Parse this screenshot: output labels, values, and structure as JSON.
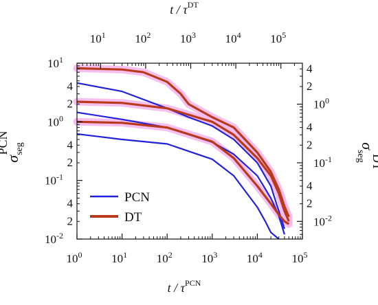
{
  "chart_data": {
    "type": "line",
    "x_bottom": {
      "label_main": "t / τ",
      "label_sup": "PCN",
      "scale": "log",
      "range": [
        1,
        100000
      ],
      "ticks": [
        {
          "b": "10",
          "e": "0",
          "v": 1
        },
        {
          "b": "10",
          "e": "1",
          "v": 10
        },
        {
          "b": "10",
          "e": "2",
          "v": 100
        },
        {
          "b": "10",
          "e": "3",
          "v": 1000
        },
        {
          "b": "10",
          "e": "4",
          "v": 10000
        },
        {
          "b": "10",
          "e": "5",
          "v": 100000
        }
      ]
    },
    "x_top": {
      "label_main": "t / τ",
      "label_sup": "DT",
      "scale": "log",
      "range": [
        3,
        300000
      ],
      "ticks": [
        {
          "b": "10",
          "e": "1",
          "v": 10
        },
        {
          "b": "10",
          "e": "2",
          "v": 100
        },
        {
          "b": "10",
          "e": "3",
          "v": 1000
        },
        {
          "b": "10",
          "e": "4",
          "v": 10000
        },
        {
          "b": "10",
          "e": "5",
          "v": 100000
        }
      ]
    },
    "y_left": {
      "label_main": "σ",
      "label_sub": "seg",
      "label_sup": "PCN",
      "scale": "log",
      "range": [
        0.01,
        10
      ],
      "ticks": [
        {
          "b": "10",
          "e": "-2",
          "v": 0.01
        },
        {
          "b": "10",
          "e": "-1",
          "v": 0.1
        },
        {
          "b": "10",
          "e": "0",
          "v": 1
        },
        {
          "b": "10",
          "e": "1",
          "v": 10
        }
      ],
      "minor_labels": [
        {
          "t": "2",
          "v": 0.02
        },
        {
          "t": "4",
          "v": 0.04
        },
        {
          "t": "2",
          "v": 0.2
        },
        {
          "t": "4",
          "v": 0.4
        },
        {
          "t": "2",
          "v": 2
        },
        {
          "t": "4",
          "v": 4
        }
      ]
    },
    "y_right": {
      "label_main": "σ",
      "label_sub": "seg",
      "label_sup": "DT",
      "scale": "log",
      "range": [
        0.005,
        5
      ],
      "ticks": [
        {
          "b": "10",
          "e": "-2",
          "v": 0.01
        },
        {
          "b": "10",
          "e": "-1",
          "v": 0.1
        },
        {
          "b": "10",
          "e": "0",
          "v": 1
        }
      ],
      "minor_labels": [
        {
          "t": "2",
          "v": 0.02
        },
        {
          "t": "4",
          "v": 0.04
        },
        {
          "t": "2",
          "v": 0.2
        },
        {
          "t": "4",
          "v": 0.4
        },
        {
          "t": "2",
          "v": 2
        },
        {
          "t": "4",
          "v": 4
        }
      ]
    },
    "legend": {
      "position": "bottom-left",
      "entries": [
        {
          "name": "PCN",
          "color": "#2020dd"
        },
        {
          "name": "DT",
          "color": "#b83a1a"
        }
      ]
    },
    "series": [
      {
        "name": "PCN",
        "color": "#2020dd",
        "x": [
          1,
          10,
          100,
          300,
          1000,
          3000,
          10000,
          20000,
          30000,
          40000
        ],
        "y": [
          4.6,
          3.3,
          1.7,
          1.2,
          0.85,
          0.5,
          0.2,
          0.08,
          0.03,
          0.015
        ]
      },
      {
        "name": "PCN",
        "color": "#2020dd",
        "x": [
          1,
          10,
          100,
          1000,
          3000,
          10000,
          20000,
          30000,
          40000
        ],
        "y": [
          1.45,
          1.1,
          0.8,
          0.45,
          0.28,
          0.12,
          0.05,
          0.025,
          0.012
        ]
      },
      {
        "name": "PCN",
        "color": "#2020dd",
        "x": [
          1,
          10,
          100,
          1000,
          3000,
          10000,
          15000,
          20000,
          30000
        ],
        "y": [
          0.62,
          0.5,
          0.42,
          0.23,
          0.12,
          0.035,
          0.02,
          0.013,
          0.01
        ]
      },
      {
        "name": "DT",
        "color": "#b83a1a",
        "x": [
          1,
          10,
          30,
          100,
          200,
          300,
          1000,
          3000,
          10000,
          20000,
          30000,
          40000,
          50000
        ],
        "y": [
          4.1,
          3.9,
          3.5,
          2.4,
          1.5,
          1.0,
          0.6,
          0.4,
          0.15,
          0.07,
          0.035,
          0.018,
          0.012
        ]
      },
      {
        "name": "DT",
        "color": "#b83a1a",
        "x": [
          1,
          10,
          100,
          1000,
          3000,
          10000,
          20000,
          30000,
          40000,
          50000
        ],
        "y": [
          1.1,
          1.05,
          0.85,
          0.5,
          0.3,
          0.12,
          0.06,
          0.03,
          0.015,
          0.01
        ]
      },
      {
        "name": "DT",
        "color": "#b83a1a",
        "x": [
          1,
          10,
          100,
          1000,
          3000,
          10000,
          20000,
          30000,
          40000,
          50000
        ],
        "y": [
          0.5,
          0.48,
          0.4,
          0.23,
          0.12,
          0.04,
          0.02,
          0.013,
          0.01,
          0.009
        ]
      }
    ]
  }
}
